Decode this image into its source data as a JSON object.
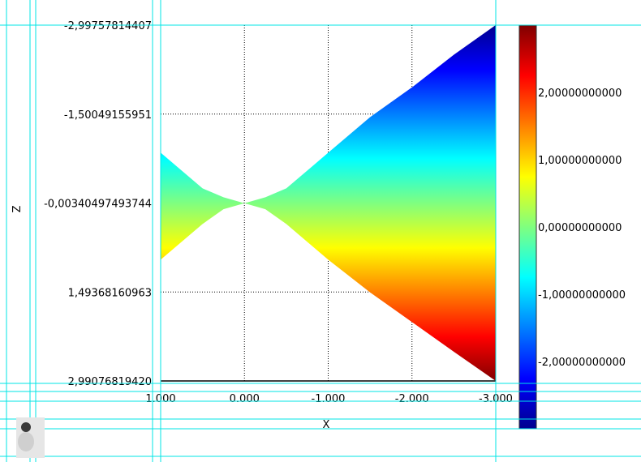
{
  "chart_data": {
    "type": "heatmap",
    "xlabel": "X",
    "ylabel": "Z",
    "x_ticks": [
      "1.000",
      "0.000",
      "-1.000",
      "-2.000",
      "-3.000"
    ],
    "x_tick_values": [
      1,
      0,
      -1,
      -2,
      -3
    ],
    "xlim": [
      1,
      -3
    ],
    "y_ticks": [
      "-2,99757814407",
      "-1,50049155951",
      "-0,00340497493744",
      "1,49368160963",
      "2,99076819420"
    ],
    "y_tick_values": [
      -2.99757814407,
      -1.50049155951,
      -0.00340497493744,
      1.49368160963,
      2.9907681942
    ],
    "ylim": [
      -2.99757814407,
      2.9907681942
    ],
    "colorbar": {
      "range": [
        -3,
        3
      ],
      "labels": [
        "2,00000000000",
        "1,00000000000",
        "0,00000000000",
        "-1,00000000000",
        "-2,00000000000"
      ],
      "label_values": [
        2,
        1,
        0,
        -1,
        -2
      ],
      "colormap": "jet"
    },
    "surface": {
      "x": [
        1.0,
        0.5,
        0.25,
        0.0,
        -0.25,
        -0.5,
        -1.0,
        -1.5,
        -2.0,
        -2.5,
        -3.0
      ],
      "z_upper": [
        -0.85,
        -0.25,
        -0.1,
        0.0,
        -0.1,
        -0.25,
        -0.85,
        -1.45,
        -1.95,
        -2.5,
        -3.0
      ],
      "z_lower": [
        0.95,
        0.35,
        0.1,
        0.0,
        0.1,
        0.35,
        0.95,
        1.5,
        2.0,
        2.5,
        2.99
      ]
    },
    "grid": true,
    "gridline_color": "#00e5e5",
    "grid_style": "dotted"
  },
  "avatar": {
    "icon": "person-avatar-icon"
  }
}
